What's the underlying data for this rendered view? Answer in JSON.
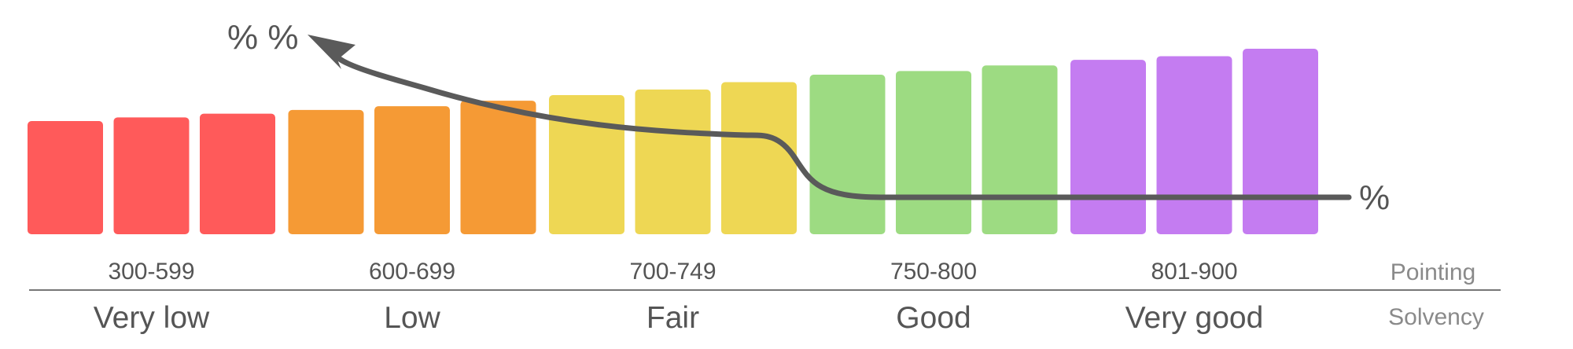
{
  "chart_data": {
    "type": "bar",
    "bar_heights_relative": [
      0.61,
      0.63,
      0.65,
      0.67,
      0.69,
      0.72,
      0.75,
      0.78,
      0.82,
      0.86,
      0.88,
      0.91,
      0.94,
      0.96,
      1.0
    ],
    "groups": [
      {
        "range": "300-599",
        "rating": "Very low",
        "color": "#ff5a5a",
        "bars": 3
      },
      {
        "range": "600-699",
        "rating": "Low",
        "color": "#f59a35",
        "bars": 3
      },
      {
        "range": "700-749",
        "rating": "Fair",
        "color": "#eed754",
        "bars": 3
      },
      {
        "range": "750-800",
        "rating": "Good",
        "color": "#9ddb82",
        "bars": 3
      },
      {
        "range": "801-900",
        "rating": "Very good",
        "color": "#c47cf1",
        "bars": 3
      }
    ],
    "row_labels": {
      "ranges": "Pointing",
      "ratings": "Solvency"
    },
    "annotations": {
      "high_rate": "% %",
      "low_rate": "%"
    },
    "colors": {
      "curve": "#5a5a5a",
      "text": "#555555",
      "row_label": "#8a8a8a",
      "rule": "#777777"
    }
  }
}
